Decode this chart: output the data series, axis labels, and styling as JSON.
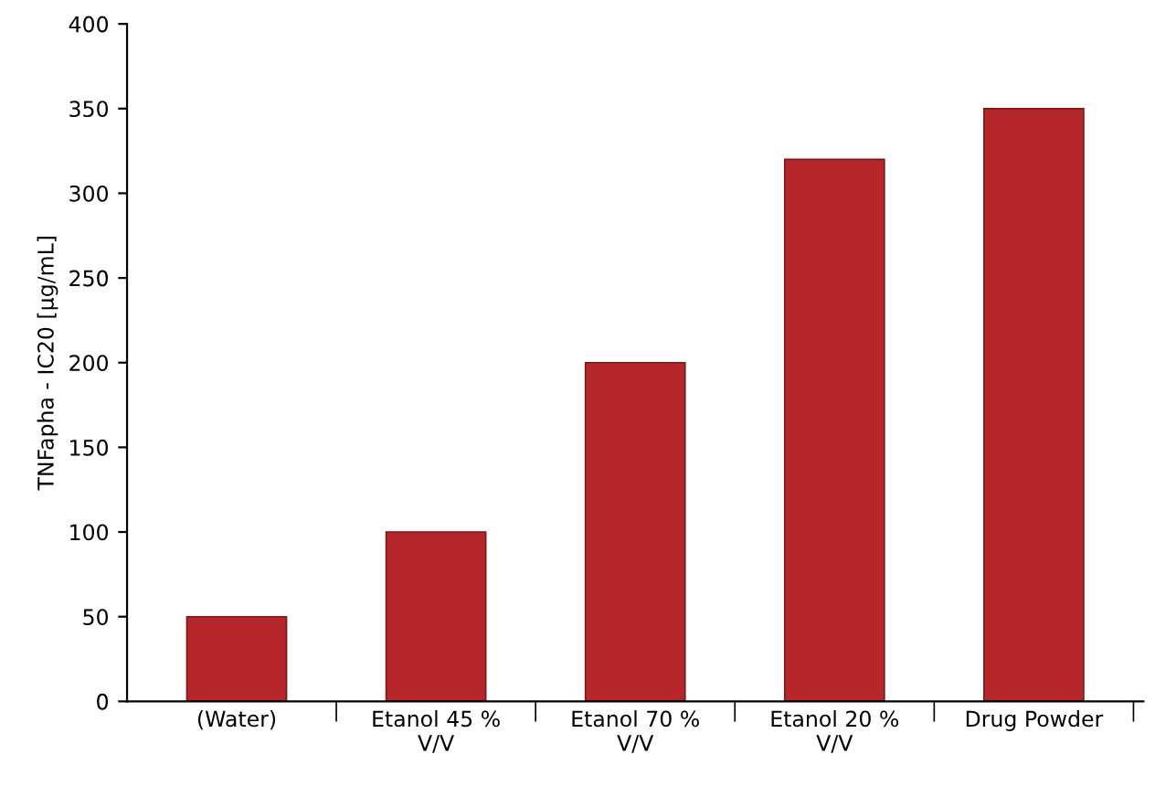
{
  "chart_data": {
    "type": "bar",
    "ylabel": "TNFapha - IC20 [µg/mL]",
    "categories": [
      "(Water)",
      "Etanol 45 %\nV/V",
      "Etanol 70 %\nV/V",
      "Etanol 20 %\nV/V",
      "Drug Powder"
    ],
    "values": [
      50,
      100,
      200,
      320,
      350
    ],
    "color": "#b5272a",
    "ylim": [
      0,
      400
    ],
    "yticks": [
      0,
      50,
      100,
      150,
      200,
      250,
      300,
      350,
      400
    ],
    "grid": false
  }
}
